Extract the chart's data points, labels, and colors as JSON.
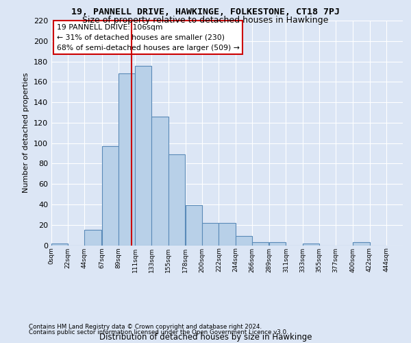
{
  "title": "19, PANNELL DRIVE, HAWKINGE, FOLKESTONE, CT18 7PJ",
  "subtitle": "Size of property relative to detached houses in Hawkinge",
  "xlabel": "Distribution of detached houses by size in Hawkinge",
  "ylabel": "Number of detached properties",
  "footnote1": "Contains HM Land Registry data © Crown copyright and database right 2024.",
  "footnote2": "Contains public sector information licensed under the Open Government Licence v3.0.",
  "annotation_line1": "19 PANNELL DRIVE: 106sqm",
  "annotation_line2": "← 31% of detached houses are smaller (230)",
  "annotation_line3": "68% of semi-detached houses are larger (509) →",
  "bar_left_edges": [
    0,
    22,
    44,
    67,
    89,
    111,
    133,
    155,
    178,
    200,
    222,
    244,
    266,
    289,
    311,
    333,
    355,
    377,
    400,
    422
  ],
  "bar_heights": [
    2,
    0,
    15,
    97,
    168,
    176,
    126,
    89,
    39,
    22,
    22,
    9,
    3,
    3,
    0,
    2,
    0,
    0,
    3,
    0
  ],
  "bin_width": 22,
  "bar_color": "#b8d0e8",
  "bar_edge_color": "#5a8ab8",
  "vline_color": "#cc0000",
  "vline_x": 106,
  "ylim": [
    0,
    220
  ],
  "yticks": [
    0,
    20,
    40,
    60,
    80,
    100,
    120,
    140,
    160,
    180,
    200,
    220
  ],
  "xtick_labels": [
    "0sqm",
    "22sqm",
    "44sqm",
    "67sqm",
    "89sqm",
    "111sqm",
    "133sqm",
    "155sqm",
    "178sqm",
    "200sqm",
    "222sqm",
    "244sqm",
    "266sqm",
    "289sqm",
    "311sqm",
    "333sqm",
    "355sqm",
    "377sqm",
    "400sqm",
    "422sqm",
    "444sqm"
  ],
  "xtick_positions": [
    0,
    22,
    44,
    67,
    89,
    111,
    133,
    155,
    178,
    200,
    222,
    244,
    266,
    289,
    311,
    333,
    355,
    377,
    400,
    422,
    444
  ],
  "bg_color": "#dce6f5",
  "plot_bg_color": "#dce6f5",
  "grid_color": "#ffffff",
  "annotation_box_facecolor": "#ffffff",
  "annotation_border_color": "#cc0000",
  "xlim_max": 466
}
